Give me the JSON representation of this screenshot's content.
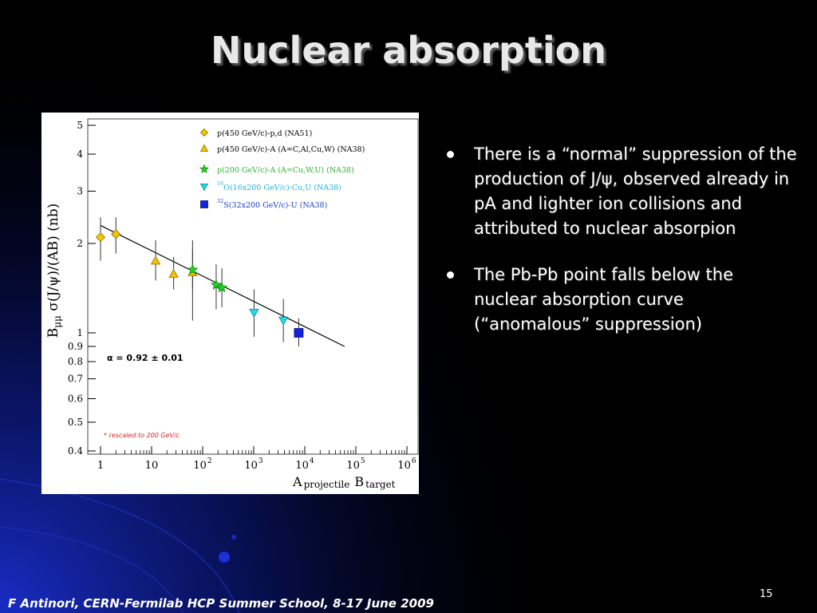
{
  "slide": {
    "title": "Nuclear absorption",
    "bullets": [
      "There is a “normal” suppression of the production of J/ψ, observed already in pA and lighter ion collisions and attributed to nuclear absorpion",
      "The Pb-Pb point falls below the nuclear absorption curve (“anomalous” suppression)"
    ],
    "footer": "F Antinori, CERN-Fermilab HCP Summer School, 8-17 June 2009",
    "page_number": "15",
    "colors": {
      "background": "#000000",
      "accent_glow": "#1a2fd0",
      "text": "#ffffff"
    }
  },
  "chart_data": {
    "type": "scatter",
    "title": "",
    "ylabel": "Bμμ σ(J/ψ)/(AB) (nb)",
    "xlabel": "A projectile B target",
    "xlabel_parts": {
      "A": "A",
      "projectile": "projectile",
      "B": "B",
      "target": "target"
    },
    "ylabel_parts": {
      "B": "B",
      "mumu": "μμ",
      "rest": " σ(J/ψ)/(AB) (nb)"
    },
    "xscale": "log",
    "yscale": "log",
    "xlim": [
      1,
      1000000
    ],
    "ylim": [
      0.4,
      5
    ],
    "x_ticks": [
      {
        "value": 1,
        "base": "1",
        "exp": ""
      },
      {
        "value": 10,
        "base": "10",
        "exp": ""
      },
      {
        "value": 100,
        "base": "10",
        "exp": "2"
      },
      {
        "value": 1000,
        "base": "10",
        "exp": "3"
      },
      {
        "value": 10000,
        "base": "10",
        "exp": "4"
      },
      {
        "value": 100000,
        "base": "10",
        "exp": "5"
      },
      {
        "value": 1000000,
        "base": "10",
        "exp": "6"
      }
    ],
    "y_ticks": [
      {
        "value": 0.4,
        "label": "0.4"
      },
      {
        "value": 0.5,
        "label": "0.5"
      },
      {
        "value": 0.6,
        "label": "0.6"
      },
      {
        "value": 0.7,
        "label": "0.7"
      },
      {
        "value": 0.8,
        "label": "0.8"
      },
      {
        "value": 0.9,
        "label": "0.9"
      },
      {
        "value": 1,
        "label": "1"
      },
      {
        "value": 2,
        "label": "2"
      },
      {
        "value": 3,
        "label": "3"
      },
      {
        "value": 4,
        "label": "4"
      },
      {
        "value": 5,
        "label": "5"
      }
    ],
    "grid": false,
    "legend_position": "top-right",
    "series": [
      {
        "name": "p(450 GeV/c)-p,d (NA51)",
        "legend_text": "p(450 GeV/c)-p,d (NA51)",
        "legend_sup": "",
        "marker": "diamond",
        "color": "#f4c400",
        "stroke": "#8a6d00",
        "text_color": "#000000",
        "points": [
          {
            "x": 1,
            "y": 2.1,
            "ylo": 1.75,
            "yhi": 2.45
          },
          {
            "x": 2,
            "y": 2.15,
            "ylo": 1.85,
            "yhi": 2.45
          }
        ]
      },
      {
        "name": "p(450 GeV/c)-A (A=C,Al,Cu,W) (NA38)",
        "legend_text": "p(450 GeV/c)-A (A=C,Al,Cu,W) (NA38)",
        "legend_sup": "",
        "marker": "triangle-up",
        "color": "#f4c400",
        "stroke": "#8a6d00",
        "text_color": "#000000",
        "points": [
          {
            "x": 12,
            "y": 1.75,
            "ylo": 1.5,
            "yhi": 2.05
          },
          {
            "x": 27,
            "y": 1.58,
            "ylo": 1.4,
            "yhi": 1.8
          },
          {
            "x": 63.5,
            "y": 1.6,
            "ylo": 1.1,
            "yhi": 2.05
          }
        ]
      },
      {
        "name": "p(200 GeV/c)-A (A=Cu,W,U) (NA38)",
        "legend_text": "p(200 GeV/c)-A (A=Cu,W,U) (NA38)",
        "legend_sup": "",
        "marker": "star",
        "color": "#1fd31f",
        "stroke": "#0f8a0f",
        "text_color": "#2bb52b",
        "points": [
          {
            "x": 63.5,
            "y": 1.63,
            "ylo": 1.4,
            "yhi": 1.9
          },
          {
            "x": 184,
            "y": 1.45,
            "ylo": 1.2,
            "yhi": 1.7
          },
          {
            "x": 238,
            "y": 1.42,
            "ylo": 1.22,
            "yhi": 1.65
          }
        ]
      },
      {
        "name": "O(16x200 GeV/c)-Cu,U (NA38)",
        "legend_text": "O(16x200 GeV/c)-Cu,U (NA38)",
        "legend_sup": "16",
        "marker": "triangle-down",
        "color": "#27d9e6",
        "stroke": "#0b8a95",
        "text_color": "#1ab3e6",
        "points": [
          {
            "x": 1016,
            "y": 1.17,
            "ylo": 0.97,
            "yhi": 1.4
          },
          {
            "x": 3808,
            "y": 1.1,
            "ylo": 0.93,
            "yhi": 1.3
          }
        ]
      },
      {
        "name": "S(32x200 GeV/c)-U (NA38)",
        "legend_text": "S(32x200 GeV/c)-U (NA38)",
        "legend_sup": "32",
        "marker": "square",
        "color": "#1024d8",
        "stroke": "#000a80",
        "text_color": "#1a3fc0",
        "points": [
          {
            "x": 7616,
            "y": 1.0,
            "ylo": 0.9,
            "yhi": 1.12
          }
        ]
      }
    ],
    "fit_line": {
      "x": [
        1,
        60000
      ],
      "y": [
        2.3,
        0.9
      ]
    },
    "annotations": [
      {
        "text": "α = 0.92  ± 0.01",
        "color": "#000000"
      },
      {
        "text": "*  rescaled to 200 GeV/c",
        "color": "#e02020"
      }
    ]
  }
}
